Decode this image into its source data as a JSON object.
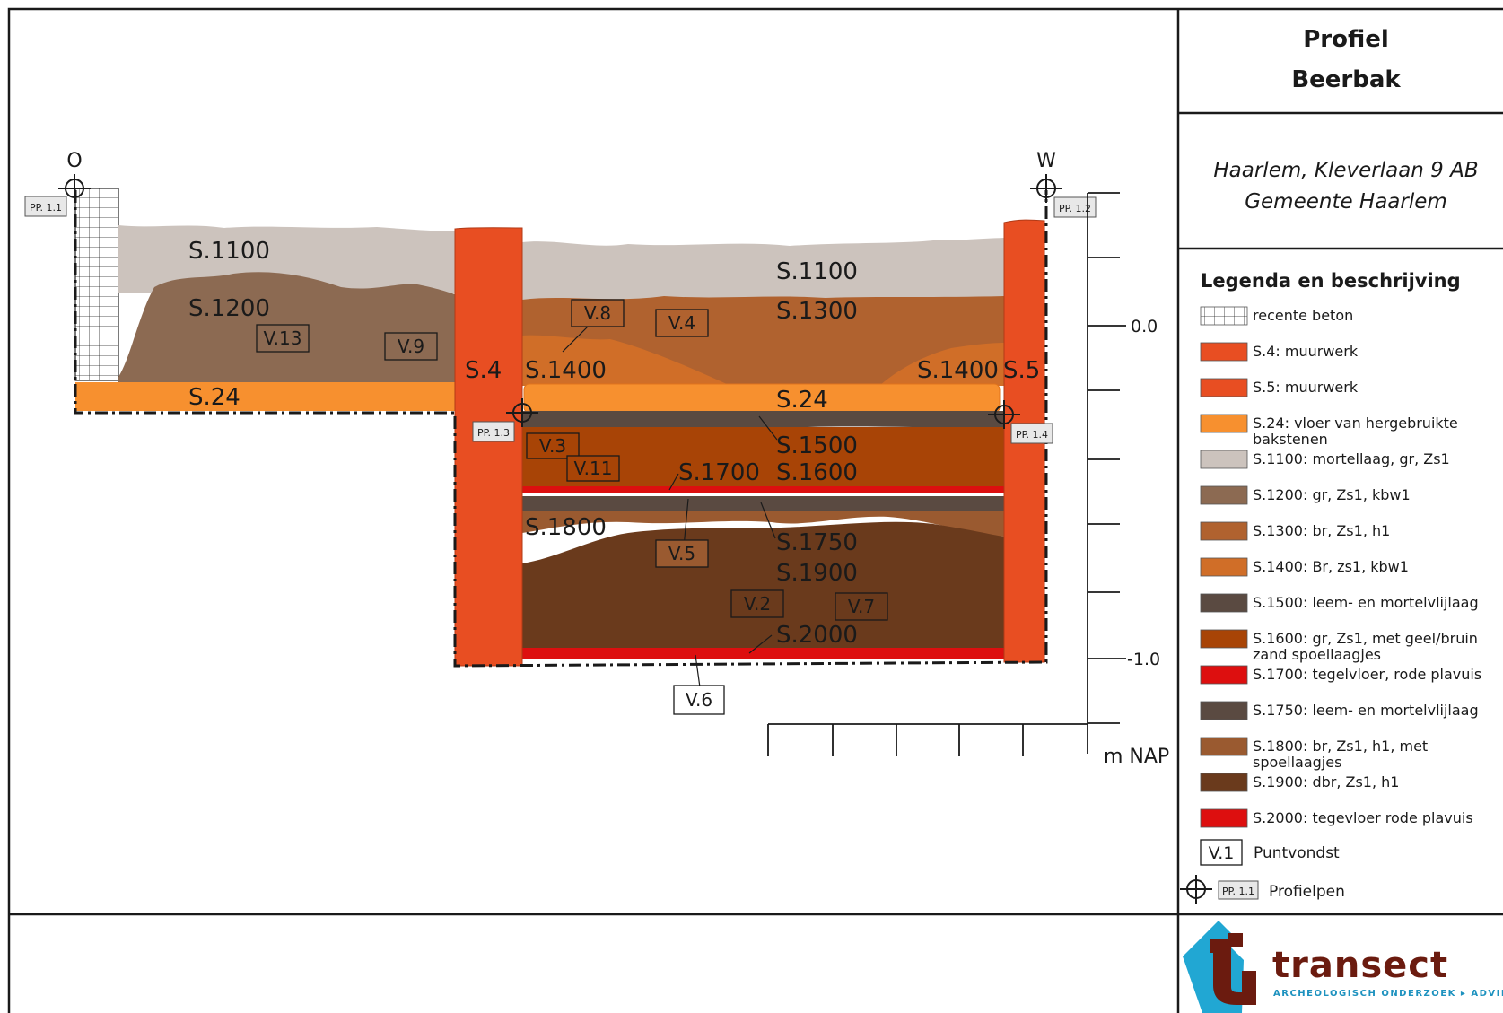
{
  "title": {
    "line1": "Profiel",
    "line2": "Beerbak"
  },
  "location": {
    "line1": "Haarlem, Kleverlaan 9 AB",
    "line2": "Gemeente Haarlem"
  },
  "orientation": {
    "left": "O",
    "right": "W"
  },
  "profile_pins": {
    "pp11": "PP. 1.1",
    "pp12": "PP. 1.2",
    "pp13": "PP. 1.3",
    "pp14": "PP. 1.4"
  },
  "section_labels": {
    "s1100_left": "S.1100",
    "s1200": "S.1200",
    "s24_left": "S.24",
    "s4": "S.4",
    "s1100_right": "S.1100",
    "s1300": "S.1300",
    "s1400_left": "S.1400",
    "s1400_right": "S.1400",
    "s5": "S.5",
    "s24_right": "S.24",
    "s1500": "S.1500",
    "s1700": "S.1700",
    "s1600": "S.1600",
    "s1800": "S.1800",
    "s1750": "S.1750",
    "s1900": "S.1900",
    "s2000": "S.2000"
  },
  "finds": {
    "v13": "V.13",
    "v9": "V.9",
    "v8": "V.8",
    "v4": "V.4",
    "v3": "V.3",
    "v11": "V.11",
    "v5": "V.5",
    "v2": "V.2",
    "v7": "V.7",
    "v6": "V.6"
  },
  "scale": {
    "tick_0": "0.0",
    "tick_1": "-1.0",
    "unit": "m NAP"
  },
  "legend": {
    "heading": "Legenda en beschrijving",
    "items": [
      {
        "label": "recente beton",
        "color": "#ffffff",
        "pattern": "grid"
      },
      {
        "label": "S.4: muurwerk",
        "color": "#e84e22"
      },
      {
        "label": "S.5: muurwerk",
        "color": "#e84e22"
      },
      {
        "label": "S.24: vloer van hergebruikte",
        "label2": "bakstenen",
        "color": "#f7902f"
      },
      {
        "label": "S.1100: mortellaag, gr, Zs1",
        "color": "#ccc3bd"
      },
      {
        "label": "S.1200: gr, Zs1, kbw1",
        "color": "#8c6a52"
      },
      {
        "label": "S.1300: br, Zs1, h1",
        "color": "#b0622f"
      },
      {
        "label": "S.1400:  Br, zs1, kbw1",
        "color": "#d06e28"
      },
      {
        "label": "S.1500: leem- en mortelvlijlaag",
        "color": "#5a4a41"
      },
      {
        "label": "S.1600: gr, Zs1, met geel/bruin",
        "label2": "zand spoellaagjes",
        "color": "#a84406"
      },
      {
        "label": "S.1700: tegelvloer, rode plavuis",
        "color": "#dd0f0f"
      },
      {
        "label": "S.1750: leem- en mortelvlijlaag",
        "color": "#5a4a41"
      },
      {
        "label": "S.1800: br, Zs1, h1, met",
        "label2": "spoellaagjes",
        "color": "#9a5a30"
      },
      {
        "label": "S.1900: dbr, Zs1, h1",
        "color": "#6a3a1c"
      },
      {
        "label": "S.2000: tegevloer rode plavuis",
        "color": "#dd0f0f"
      }
    ],
    "find_sample": "V.1",
    "find_label": "Puntvondst",
    "pin_sample": "PP. 1.1",
    "pin_label": "Profielpen"
  },
  "logo": {
    "name": "transect",
    "tagline": "ARCHEOLOGISCH ONDERZOEK ▸ ADVIES"
  }
}
